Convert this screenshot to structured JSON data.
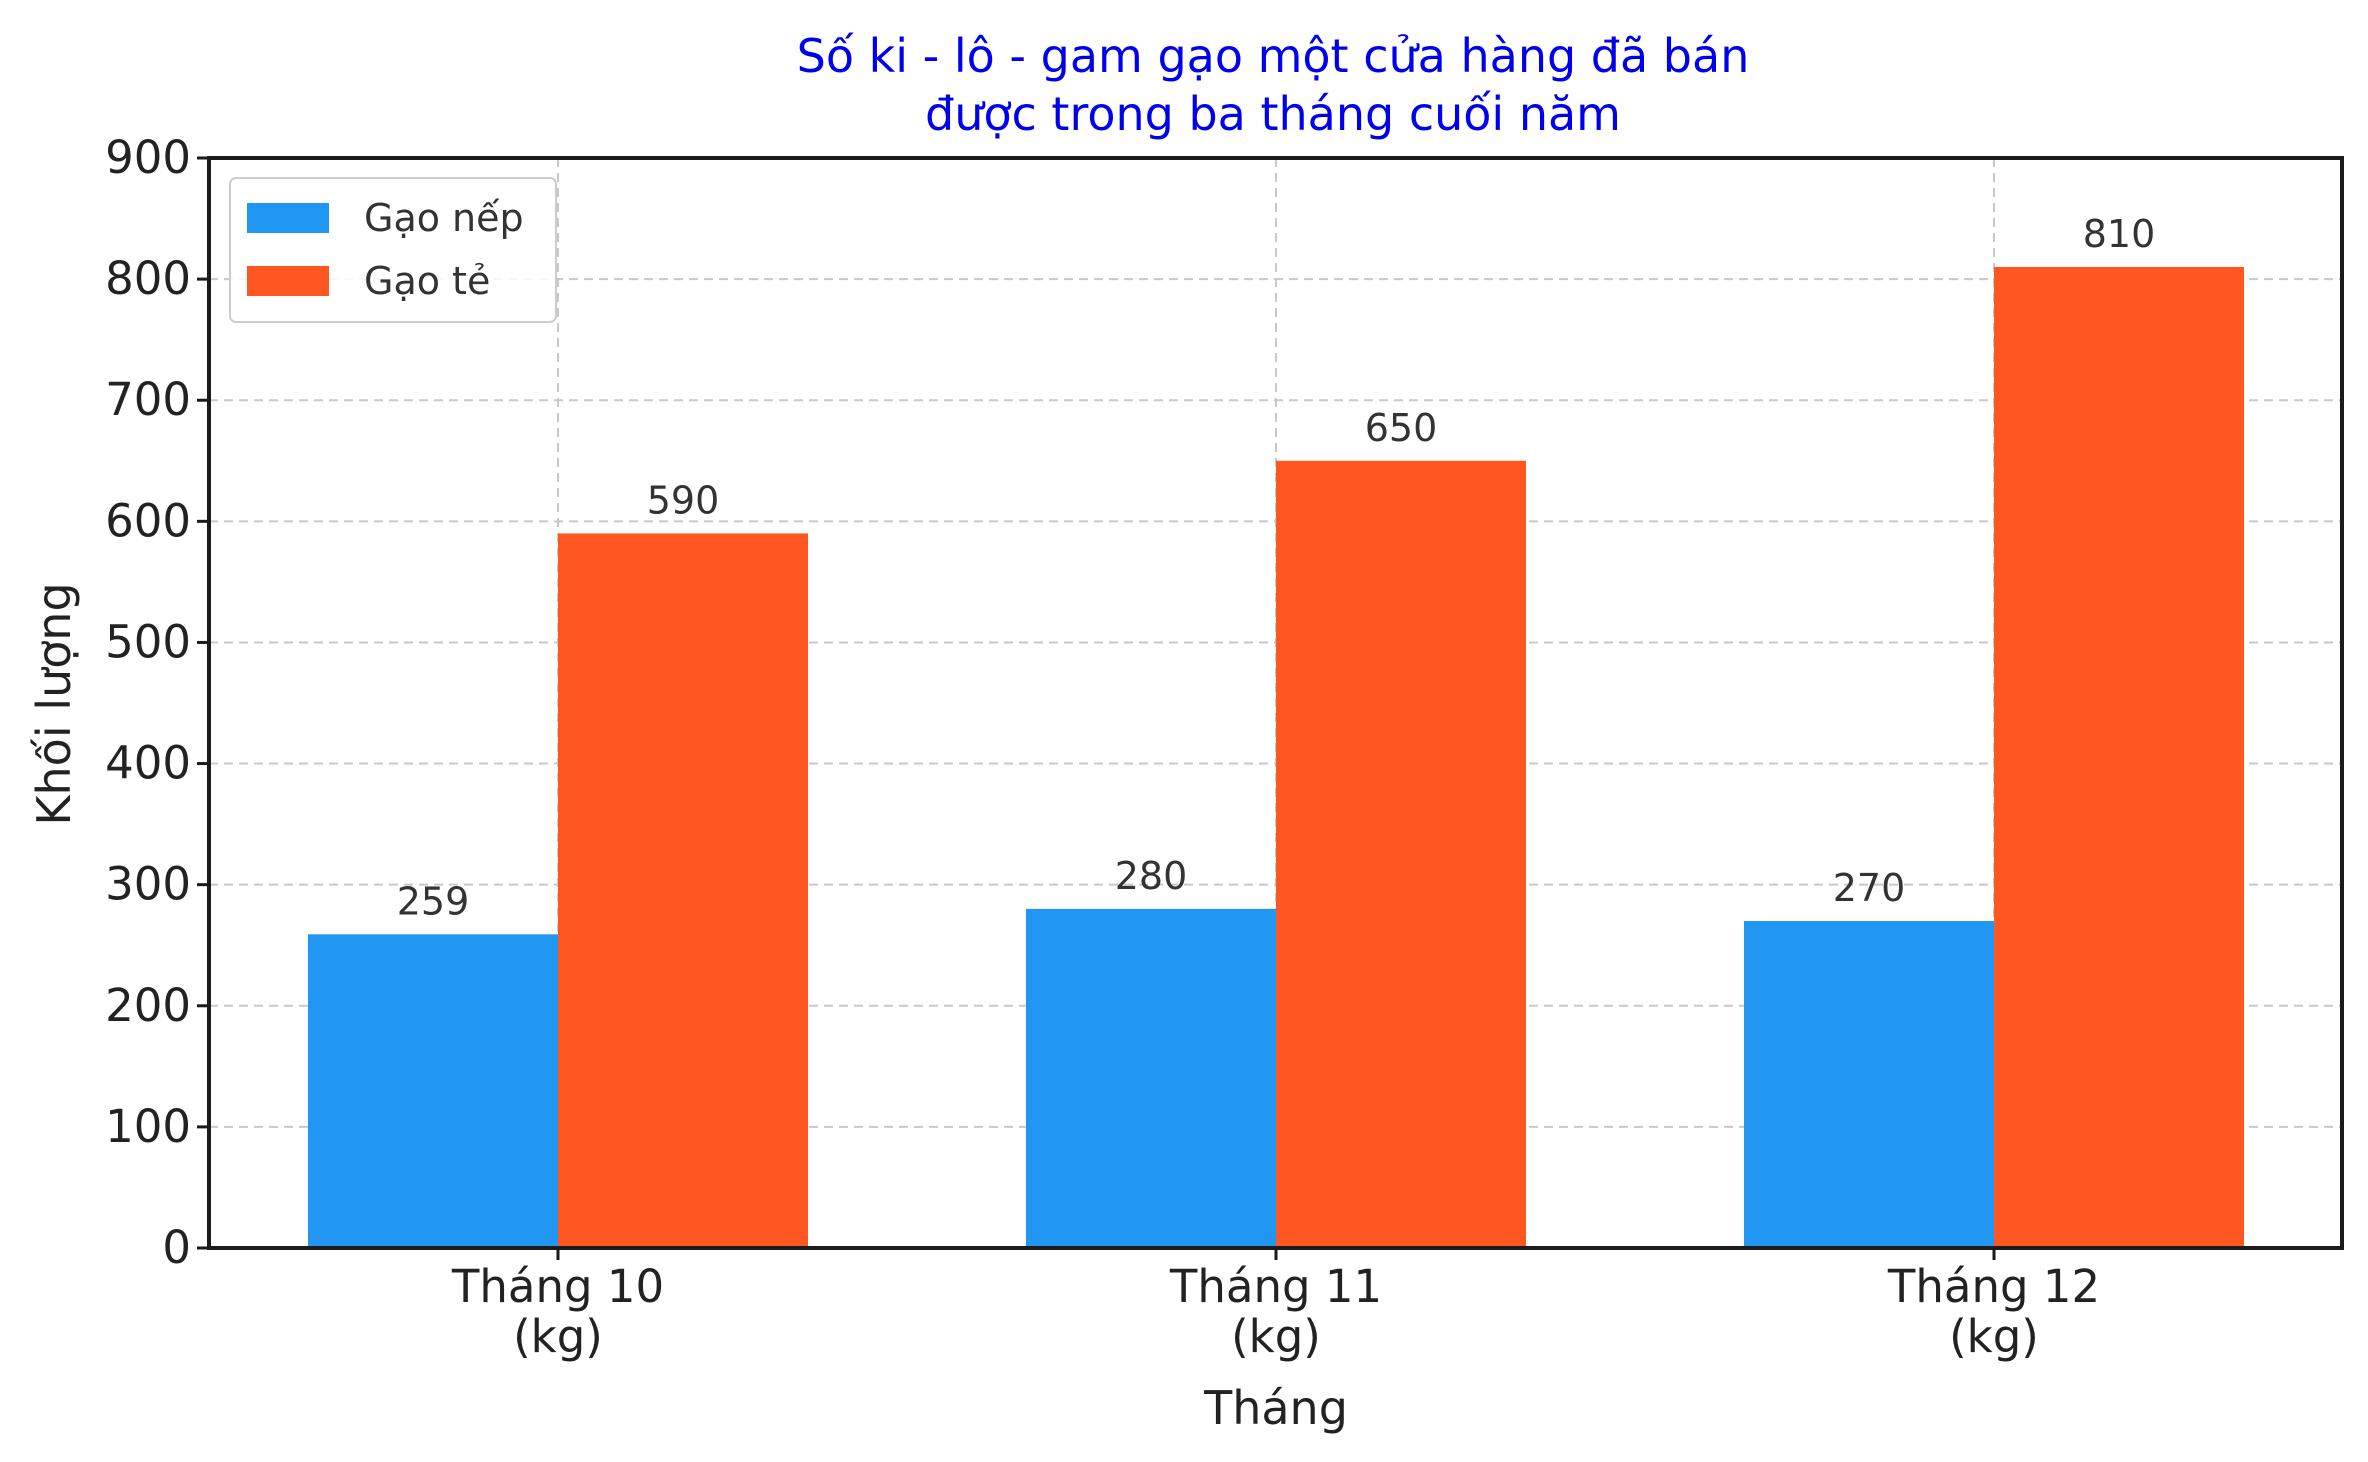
{
  "chart_data": {
    "type": "bar",
    "title": [
      "Số ki - lô - gam gạo một cửa hàng đã bán",
      "được trong ba tháng cuối năm"
    ],
    "xlabel": "Tháng",
    "ylabel": "Khối lượng",
    "categories": [
      [
        "Tháng 10",
        "(kg)"
      ],
      [
        "Tháng 11",
        "(kg)"
      ],
      [
        "Tháng 12",
        "(kg)"
      ]
    ],
    "series": [
      {
        "name": "Gạo nếp",
        "values": [
          259,
          280,
          270
        ],
        "color": "#2196f3"
      },
      {
        "name": "Gạo tẻ",
        "values": [
          590,
          650,
          810
        ],
        "color": "#ff5722"
      }
    ],
    "ylim": [
      0,
      900
    ],
    "yticks": [
      0,
      100,
      200,
      300,
      400,
      500,
      600,
      700,
      800,
      900
    ],
    "grid": true,
    "legend": "top-left",
    "title_color": "#0000ee"
  }
}
